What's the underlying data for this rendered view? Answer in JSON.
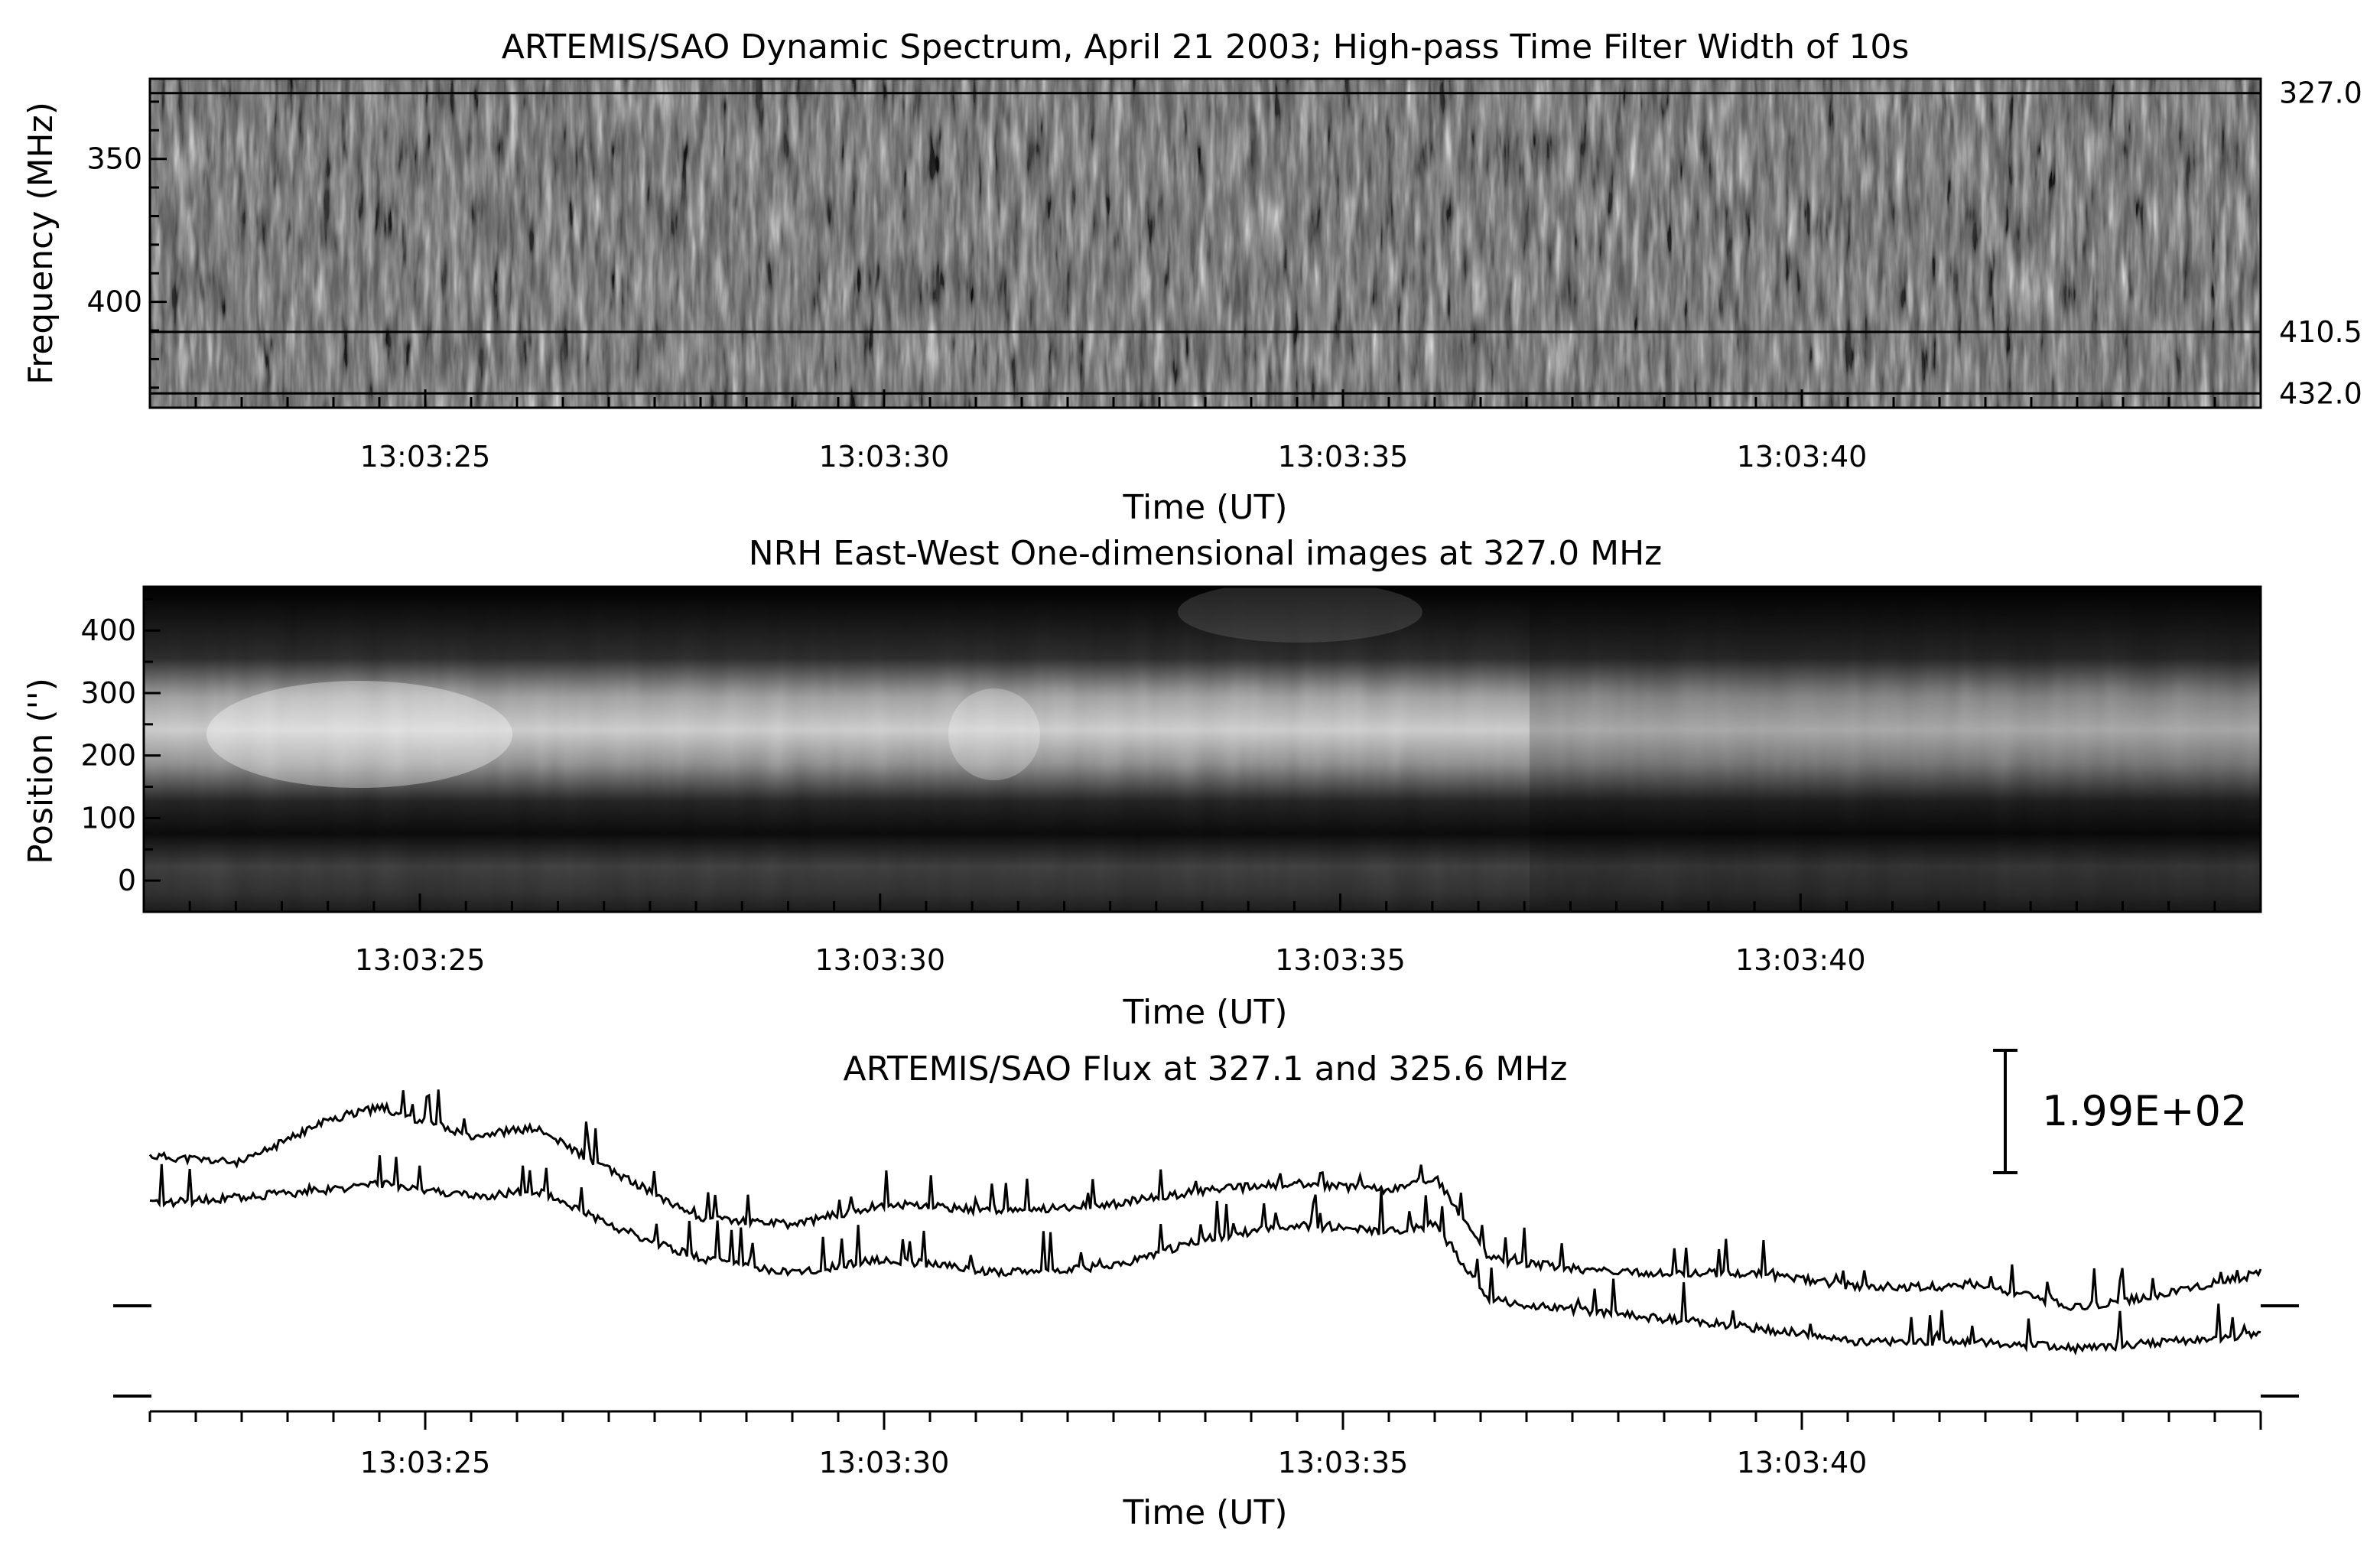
{
  "chart_data": [
    {
      "type": "heatmap",
      "title": "ARTEMIS/SAO Dynamic Spectrum, April 21 2003; High-pass Time Filter Width of 10s",
      "xlabel": "Time (UT)",
      "ylabel": "Frequency (MHz)",
      "x_ticks": [
        "13:03:25",
        "13:03:30",
        "13:03:35",
        "13:03:40"
      ],
      "x_tick_seconds": [
        25,
        30,
        35,
        40
      ],
      "xlim_seconds": [
        22,
        45
      ],
      "y_ticks": [
        350,
        400
      ],
      "ylim": [
        322,
        437
      ],
      "y_inverted": true,
      "colormap": "grayscale",
      "marked_frequencies": [
        {
          "value": 327.0,
          "label": "327.0"
        },
        {
          "value": 410.5,
          "label": "410.5"
        },
        {
          "value": 432.0,
          "label": "432.0"
        }
      ]
    },
    {
      "type": "heatmap",
      "title": "NRH East-West One-dimensional images at 327.0 MHz",
      "xlabel": "Time (UT)",
      "ylabel": "Position ('')",
      "x_ticks": [
        "13:03:25",
        "13:03:30",
        "13:03:35",
        "13:03:40"
      ],
      "x_tick_seconds": [
        25,
        30,
        35,
        40
      ],
      "xlim_seconds": [
        22,
        45
      ],
      "y_ticks": [
        0,
        100,
        200,
        300,
        400
      ],
      "ylim": [
        -50,
        470
      ],
      "colormap": "grayscale"
    },
    {
      "type": "line",
      "title": "ARTEMIS/SAO Flux at 327.1 and 325.6 MHz",
      "xlabel": "Time (UT)",
      "x_ticks": [
        "13:03:25",
        "13:03:30",
        "13:03:35",
        "13:03:40"
      ],
      "x_tick_seconds": [
        25,
        30,
        35,
        40
      ],
      "xlim_seconds": [
        22,
        45
      ],
      "scale_bar_label": "1.99E+02",
      "series": [
        {
          "x": [
            22.0,
            23.0,
            23.9,
            24.5,
            25.5,
            26.2,
            27.0,
            28.0,
            29.0,
            30.0,
            31.3,
            32.5,
            33.5,
            34.5,
            35.5,
            36.0,
            36.6,
            38.0,
            39.5,
            40.6,
            42.0,
            43.0,
            44.0,
            45.0
          ],
          "y": [
            1.3,
            1.25,
            1.55,
            1.65,
            1.45,
            1.5,
            1.2,
            0.85,
            0.8,
            0.95,
            0.9,
            0.95,
            1.05,
            1.1,
            1.05,
            1.15,
            0.55,
            0.45,
            0.45,
            0.35,
            0.35,
            0.2,
            0.3,
            0.45
          ]
        },
        {
          "x": [
            22.0,
            23.0,
            23.9,
            24.5,
            25.5,
            26.2,
            27.0,
            28.0,
            29.0,
            30.0,
            31.3,
            32.5,
            33.5,
            34.5,
            35.5,
            36.0,
            36.6,
            38.0,
            39.5,
            40.6,
            42.0,
            43.0,
            44.0,
            45.0
          ],
          "y": [
            0.95,
            1.0,
            1.05,
            1.1,
            1.0,
            1.05,
            0.8,
            0.55,
            0.45,
            0.55,
            0.45,
            0.5,
            0.7,
            0.8,
            0.75,
            0.8,
            0.25,
            0.15,
            0.05,
            -0.05,
            -0.05,
            -0.1,
            -0.05,
            0.0
          ]
        }
      ]
    }
  ]
}
